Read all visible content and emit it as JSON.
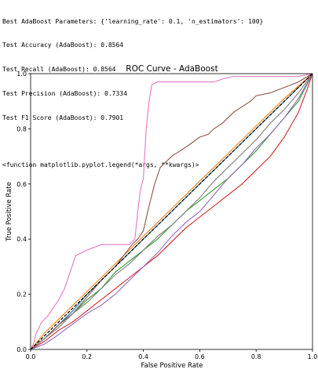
{
  "console": {
    "lines": [
      "Best AdaBoost Parameters: {'learning_rate': 0.1, 'n_estimators': 100}",
      "Test Accuracy (AdaBoost): 0.8564",
      "Test Recall (AdaBoost): 0.8564",
      "Test Precision (AdaBoost): 0.7334",
      "Test F1 Score (AdaBoost): 0.7901"
    ],
    "output": "<function matplotlib.pyplot.legend(*args, **kwargs)>"
  },
  "chart_data": {
    "type": "line",
    "title": "ROC Curve - AdaBoost",
    "xlabel": "False Positive Rate",
    "ylabel": "True Positive Rate",
    "xlim": [
      0,
      1
    ],
    "ylim": [
      0,
      1
    ],
    "xticks": [
      "0.0",
      "0.2",
      "0.4",
      "0.6",
      "0.8",
      "1.0"
    ],
    "yticks": [
      "0.0",
      "0.2",
      "0.4",
      "0.6",
      "0.8",
      "1.0"
    ],
    "grid": false,
    "legend": "none",
    "series": [
      {
        "color": "#1f77b4",
        "points": [
          [
            0,
            0
          ],
          [
            0.05,
            0.04
          ],
          [
            0.1,
            0.09
          ],
          [
            0.15,
            0.14
          ],
          [
            0.2,
            0.2
          ],
          [
            0.25,
            0.25
          ],
          [
            0.3,
            0.3
          ],
          [
            0.35,
            0.35
          ],
          [
            0.4,
            0.4
          ],
          [
            0.5,
            0.5
          ],
          [
            0.6,
            0.6
          ],
          [
            0.7,
            0.7
          ],
          [
            0.8,
            0.8
          ],
          [
            0.9,
            0.9
          ],
          [
            1,
            1
          ]
        ]
      },
      {
        "color": "#ff7f0e",
        "points": [
          [
            0,
            0
          ],
          [
            0.05,
            0.06
          ],
          [
            0.1,
            0.11
          ],
          [
            0.15,
            0.16
          ],
          [
            0.2,
            0.21
          ],
          [
            0.3,
            0.31
          ],
          [
            0.4,
            0.41
          ],
          [
            0.5,
            0.51
          ],
          [
            0.6,
            0.61
          ],
          [
            0.7,
            0.71
          ],
          [
            0.8,
            0.81
          ],
          [
            0.9,
            0.91
          ],
          [
            1,
            1
          ]
        ]
      },
      {
        "color": "#2ca02c",
        "points": [
          [
            0,
            0
          ],
          [
            0.05,
            0.04
          ],
          [
            0.1,
            0.09
          ],
          [
            0.15,
            0.13
          ],
          [
            0.2,
            0.18
          ],
          [
            0.25,
            0.22
          ],
          [
            0.3,
            0.28
          ],
          [
            0.35,
            0.32
          ],
          [
            0.4,
            0.36
          ],
          [
            0.45,
            0.4
          ],
          [
            0.5,
            0.45
          ],
          [
            0.55,
            0.5
          ],
          [
            0.6,
            0.54
          ],
          [
            0.65,
            0.58
          ],
          [
            0.7,
            0.62
          ],
          [
            0.75,
            0.67
          ],
          [
            0.8,
            0.72
          ],
          [
            0.85,
            0.78
          ],
          [
            0.9,
            0.84
          ],
          [
            0.95,
            0.9
          ],
          [
            0.98,
            0.96
          ],
          [
            1,
            1
          ]
        ]
      },
      {
        "color": "#d62728",
        "points": [
          [
            0,
            0
          ],
          [
            0.05,
            0.03
          ],
          [
            0.1,
            0.07
          ],
          [
            0.15,
            0.1
          ],
          [
            0.2,
            0.14
          ],
          [
            0.25,
            0.18
          ],
          [
            0.3,
            0.22
          ],
          [
            0.35,
            0.26
          ],
          [
            0.4,
            0.3
          ],
          [
            0.45,
            0.34
          ],
          [
            0.5,
            0.39
          ],
          [
            0.55,
            0.44
          ],
          [
            0.6,
            0.48
          ],
          [
            0.65,
            0.52
          ],
          [
            0.7,
            0.56
          ],
          [
            0.75,
            0.6
          ],
          [
            0.8,
            0.65
          ],
          [
            0.85,
            0.7
          ],
          [
            0.9,
            0.77
          ],
          [
            0.95,
            0.86
          ],
          [
            0.98,
            0.94
          ],
          [
            1,
            1
          ]
        ]
      },
      {
        "color": "#9467bd",
        "points": [
          [
            0,
            0
          ],
          [
            0.05,
            0.02
          ],
          [
            0.08,
            0.04
          ],
          [
            0.12,
            0.07
          ],
          [
            0.16,
            0.1
          ],
          [
            0.2,
            0.13
          ],
          [
            0.25,
            0.16
          ],
          [
            0.3,
            0.2
          ],
          [
            0.35,
            0.25
          ],
          [
            0.4,
            0.3
          ],
          [
            0.45,
            0.35
          ],
          [
            0.5,
            0.41
          ],
          [
            0.55,
            0.46
          ],
          [
            0.6,
            0.5
          ],
          [
            0.65,
            0.56
          ],
          [
            0.7,
            0.62
          ],
          [
            0.75,
            0.67
          ],
          [
            0.8,
            0.73
          ],
          [
            0.85,
            0.78
          ],
          [
            0.9,
            0.84
          ],
          [
            0.95,
            0.91
          ],
          [
            1,
            1
          ]
        ]
      },
      {
        "color": "#8c564b",
        "points": [
          [
            0,
            0
          ],
          [
            0.05,
            0.04
          ],
          [
            0.1,
            0.09
          ],
          [
            0.15,
            0.13
          ],
          [
            0.2,
            0.19
          ],
          [
            0.25,
            0.25
          ],
          [
            0.3,
            0.3
          ],
          [
            0.33,
            0.34
          ],
          [
            0.36,
            0.38
          ],
          [
            0.38,
            0.4
          ],
          [
            0.4,
            0.43
          ],
          [
            0.42,
            0.52
          ],
          [
            0.44,
            0.6
          ],
          [
            0.46,
            0.66
          ],
          [
            0.48,
            0.68
          ],
          [
            0.5,
            0.7
          ],
          [
            0.53,
            0.72
          ],
          [
            0.56,
            0.74
          ],
          [
            0.6,
            0.77
          ],
          [
            0.63,
            0.78
          ],
          [
            0.65,
            0.8
          ],
          [
            0.68,
            0.82
          ],
          [
            0.7,
            0.84
          ],
          [
            0.72,
            0.86
          ],
          [
            0.75,
            0.88
          ],
          [
            0.78,
            0.9
          ],
          [
            0.8,
            0.92
          ],
          [
            0.85,
            0.93
          ],
          [
            0.9,
            0.95
          ],
          [
            0.95,
            0.97
          ],
          [
            1,
            1
          ]
        ]
      },
      {
        "color": "#e377c2",
        "points": [
          [
            0,
            0
          ],
          [
            0.01,
            0.02
          ],
          [
            0.02,
            0.06
          ],
          [
            0.04,
            0.1
          ],
          [
            0.06,
            0.12
          ],
          [
            0.08,
            0.15
          ],
          [
            0.1,
            0.18
          ],
          [
            0.12,
            0.22
          ],
          [
            0.14,
            0.28
          ],
          [
            0.16,
            0.34
          ],
          [
            0.2,
            0.36
          ],
          [
            0.25,
            0.38
          ],
          [
            0.3,
            0.38
          ],
          [
            0.35,
            0.38
          ],
          [
            0.37,
            0.4
          ],
          [
            0.38,
            0.5
          ],
          [
            0.39,
            0.58
          ],
          [
            0.4,
            0.62
          ],
          [
            0.41,
            0.8
          ],
          [
            0.42,
            0.9
          ],
          [
            0.43,
            0.96
          ],
          [
            0.45,
            0.97
          ],
          [
            0.5,
            0.97
          ],
          [
            0.55,
            0.97
          ],
          [
            0.6,
            0.97
          ],
          [
            0.65,
            0.97
          ],
          [
            0.68,
            0.98
          ],
          [
            0.72,
            0.99
          ],
          [
            0.8,
            0.99
          ],
          [
            0.88,
            0.99
          ],
          [
            0.95,
            0.99
          ],
          [
            1,
            1
          ]
        ]
      },
      {
        "color": "#7f7f7f",
        "points": [
          [
            0,
            0
          ],
          [
            0.05,
            0.04
          ],
          [
            0.1,
            0.08
          ],
          [
            0.15,
            0.13
          ],
          [
            0.2,
            0.17
          ],
          [
            0.25,
            0.22
          ],
          [
            0.3,
            0.27
          ],
          [
            0.35,
            0.31
          ],
          [
            0.4,
            0.36
          ],
          [
            0.45,
            0.41
          ],
          [
            0.5,
            0.45
          ],
          [
            0.55,
            0.5
          ],
          [
            0.6,
            0.55
          ],
          [
            0.65,
            0.61
          ],
          [
            0.7,
            0.66
          ],
          [
            0.75,
            0.71
          ],
          [
            0.8,
            0.76
          ],
          [
            0.85,
            0.82
          ],
          [
            0.9,
            0.87
          ],
          [
            0.95,
            0.93
          ],
          [
            1,
            1
          ]
        ]
      },
      {
        "color": "#000000",
        "dashed": true,
        "points": [
          [
            0,
            0
          ],
          [
            1,
            1
          ]
        ]
      }
    ]
  }
}
